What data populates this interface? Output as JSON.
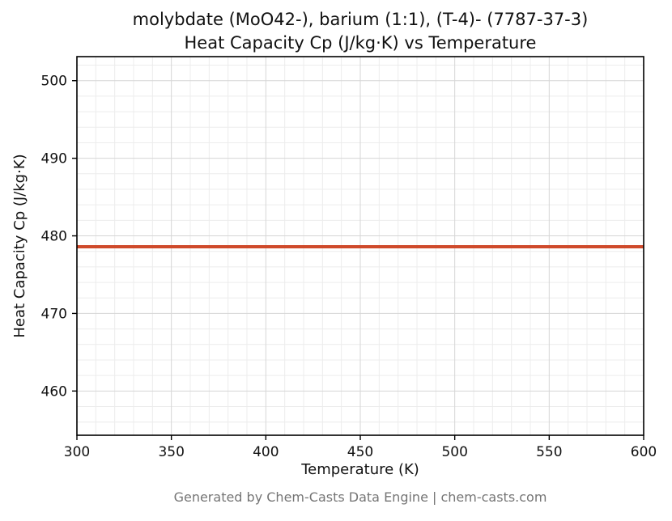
{
  "figure": {
    "footer": "Generated by Chem-Casts Data Engine | chem-casts.com"
  },
  "chart_data": {
    "type": "line",
    "title_line1": "molybdate (MoO42-), barium (1:1), (T-4)- (7787-37-3)",
    "title_line2": "Heat Capacity Cp (J/kg·K) vs Temperature",
    "xlabel": "Temperature (K)",
    "ylabel": "Heat Capacity Cp (J/kg·K)",
    "xlim": [
      300,
      600
    ],
    "ylim": [
      454.3,
      503.1
    ],
    "x_ticks": [
      300,
      350,
      400,
      450,
      500,
      550,
      600
    ],
    "y_ticks": [
      460,
      470,
      480,
      490,
      500
    ],
    "x_minor_step": 10,
    "y_minor_step": 2,
    "grid": "both",
    "legend": "none",
    "colors": {
      "line": "#cf4a2b",
      "minor_grid": "#ececec",
      "major_grid": "#d6d6d6",
      "spine": "#000000"
    },
    "series": [
      {
        "name": "Heat Capacity Cp",
        "x": [
          300,
          600
        ],
        "y": [
          478.6,
          478.6
        ]
      }
    ]
  }
}
